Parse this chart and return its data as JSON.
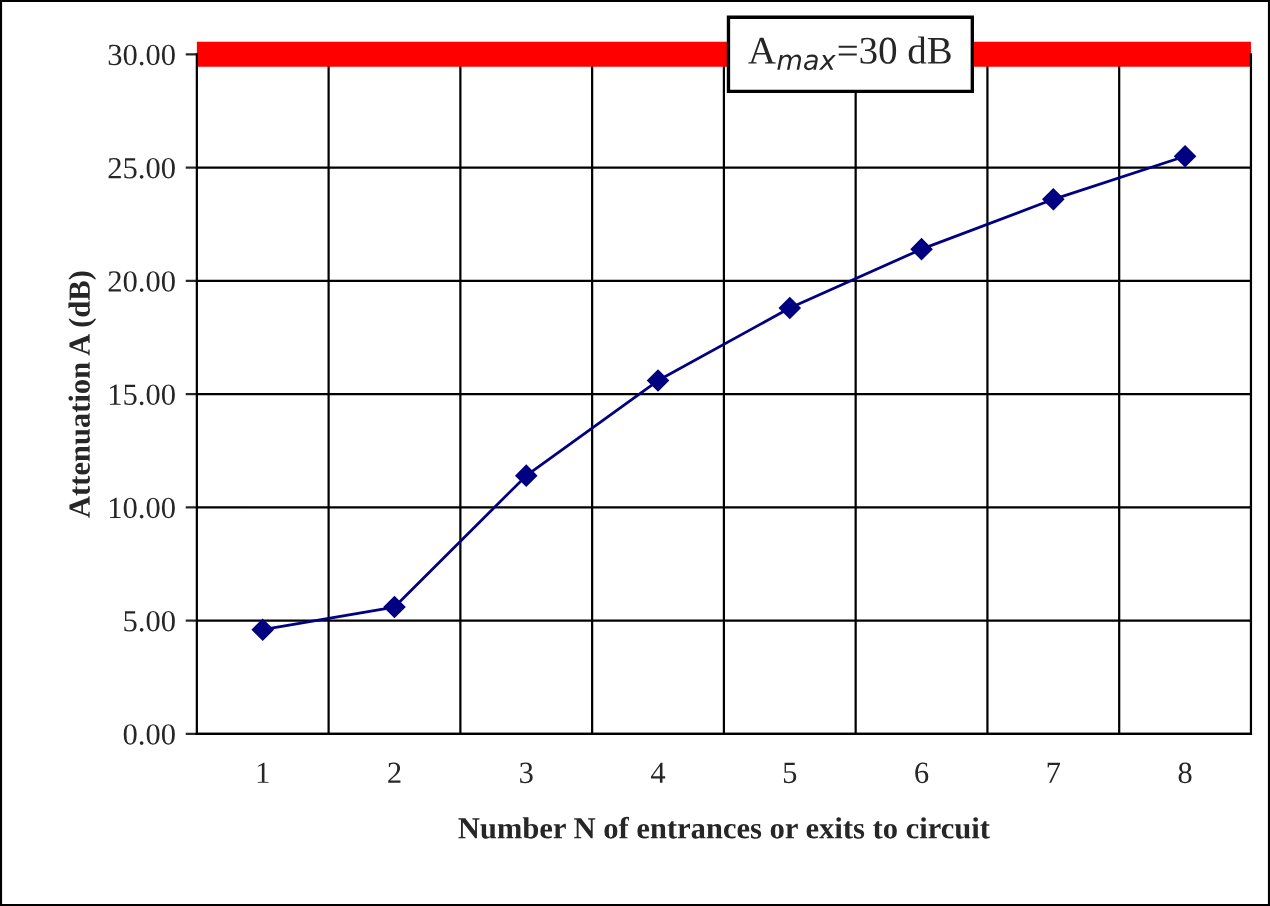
{
  "chart_data": {
    "type": "line",
    "xlabel": "Number N of entrances or exits to circuit",
    "ylabel": "Attenuation A (dB)",
    "categories": [
      "1",
      "2",
      "3",
      "4",
      "5",
      "6",
      "7",
      "8"
    ],
    "series": [
      {
        "color": "#000080",
        "values": [
          4.6,
          5.6,
          11.4,
          15.6,
          18.8,
          21.4,
          23.6,
          25.5
        ]
      }
    ],
    "ylim": [
      0,
      30
    ],
    "yticks": [
      {
        "value": 0,
        "label": "0.00"
      },
      {
        "value": 5,
        "label": "5.00"
      },
      {
        "value": 10,
        "label": "10.00"
      },
      {
        "value": 15,
        "label": "15.00"
      },
      {
        "value": 20,
        "label": "20.00"
      },
      {
        "value": 25,
        "label": "25.00"
      },
      {
        "value": 30,
        "label": "30.00"
      }
    ],
    "ref_lines": [
      {
        "axis": "y",
        "value": 30,
        "label": "A$_{max}$=30 dB",
        "color": "#ff0000"
      }
    ],
    "grid": true,
    "marker": "diamond",
    "line_style": "solid",
    "legend": false
  }
}
